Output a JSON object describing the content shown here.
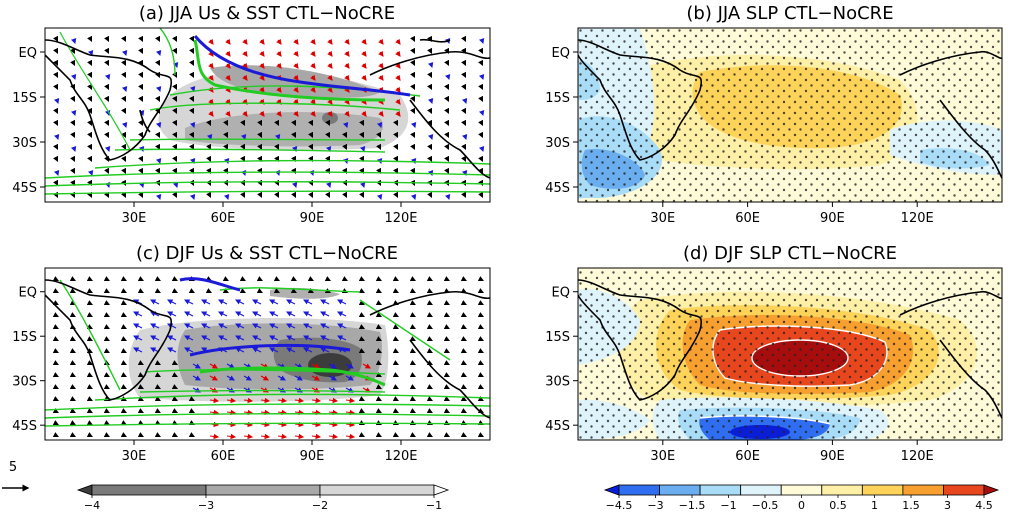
{
  "panels": [
    {
      "id": "a",
      "title": "(a) JJA Us & SST CTL−NoCRE",
      "kind": "sst_wind"
    },
    {
      "id": "b",
      "title": "(b) JJA SLP CTL−NoCRE",
      "kind": "slp"
    },
    {
      "id": "c",
      "title": "(c) DJF Us & SST CTL−NoCRE",
      "kind": "sst_wind"
    },
    {
      "id": "d",
      "title": "(d) DJF SLP CTL−NoCRE",
      "kind": "slp"
    }
  ],
  "axes": {
    "lat_labels": [
      "EQ",
      "15S",
      "30S",
      "45S"
    ],
    "lat_values": [
      0,
      -15,
      -30,
      -45
    ],
    "lon_labels": [
      "30E",
      "60E",
      "90E",
      "120E"
    ],
    "lon_values": [
      30,
      60,
      90,
      120
    ],
    "lon_range": [
      0,
      150
    ],
    "lat_range": [
      -50,
      8
    ]
  },
  "vector_key": {
    "label": "5"
  },
  "colorbar_gray": {
    "labels": [
      "−4",
      "−3",
      "−2",
      "−1"
    ],
    "values": [
      -4,
      -3,
      -2,
      -1
    ],
    "colors": [
      "#3c3c3c",
      "#7a7a7a",
      "#a8a8a8",
      "#d6d6d6"
    ]
  },
  "colorbar_slp": {
    "labels": [
      "−4.5",
      "−3",
      "−1.5",
      "−1",
      "−0.5",
      "0",
      "0.5",
      "1",
      "1.5",
      "3",
      "4.5"
    ],
    "values": [
      -4.5,
      -3,
      -1.5,
      -1,
      -0.5,
      0,
      0.5,
      1,
      1.5,
      3,
      4.5
    ],
    "colors": [
      "#0a1ed8",
      "#2f6ef0",
      "#6aaef0",
      "#a9dcf7",
      "#dff3fb",
      "#fffbd9",
      "#fff0a8",
      "#fdd35a",
      "#f7a030",
      "#e8461d",
      "#a80d0d"
    ]
  },
  "chart_data": [
    {
      "type": "heatmap",
      "title": "(a) JJA Us & SST CTL−NoCRE",
      "field": "SST difference (gray shading) with surface wind vectors",
      "min_shading": -3,
      "contours": "green/blue SST contours"
    },
    {
      "type": "heatmap",
      "title": "(b) JJA SLP CTL−NoCRE",
      "field": "SLP difference",
      "max": 1.5,
      "min": -3
    },
    {
      "type": "heatmap",
      "title": "(c) DJF Us & SST CTL−NoCRE",
      "field": "SST difference (gray shading) with surface wind vectors",
      "min_shading": -4
    },
    {
      "type": "heatmap",
      "title": "(d) DJF SLP CTL−NoCRE",
      "field": "SLP difference",
      "max": 4.5,
      "min": -3
    }
  ]
}
